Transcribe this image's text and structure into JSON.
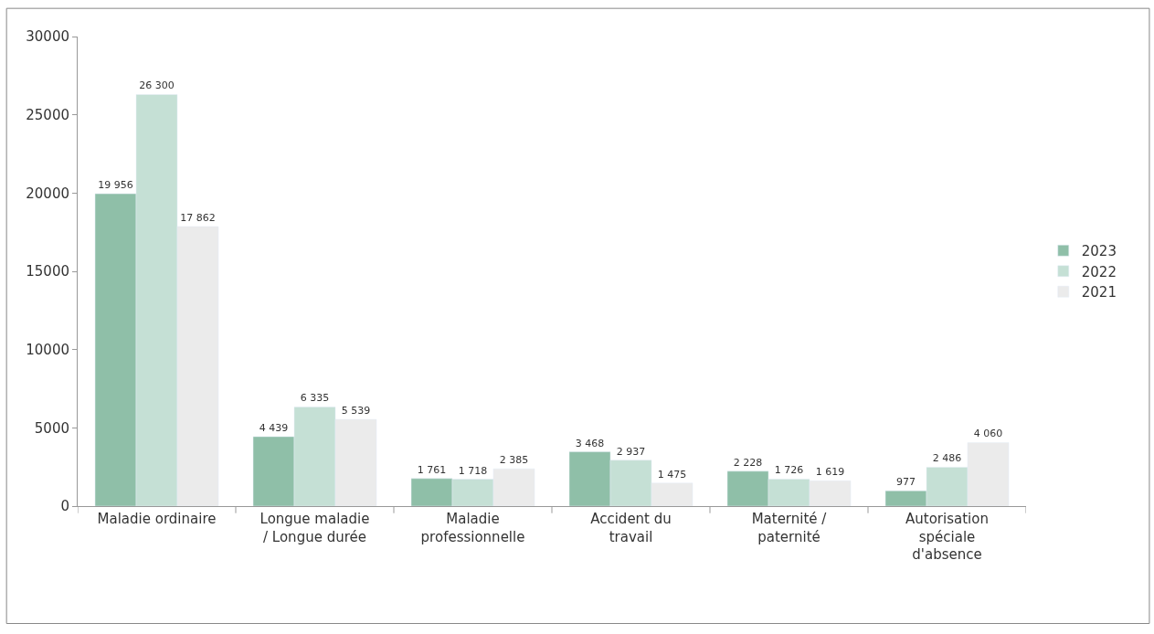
{
  "chart_data": {
    "type": "bar",
    "categories": [
      "Maladie ordinaire",
      "Longue maladie\n/ Longue durée",
      "Maladie\nprofessionnelle",
      "Accident du\ntravail",
      "Maternité /\npaternité",
      "Autorisation\nspéciale\nd'absence"
    ],
    "series": [
      {
        "name": "2023",
        "color": "#8fbfa8",
        "values": [
          19956,
          4439,
          1761,
          3468,
          2228,
          977
        ],
        "value_labels": [
          "19 956",
          "4 439",
          "1 761",
          "3 468",
          "2 228",
          "977"
        ]
      },
      {
        "name": "2022",
        "color": "#c5e0d5",
        "values": [
          26300,
          6335,
          1718,
          2937,
          1726,
          2486
        ],
        "value_labels": [
          "26 300",
          "6 335",
          "1 718",
          "2 937",
          "1 726",
          "2 486"
        ]
      },
      {
        "name": "2021",
        "color": "#ebebeb",
        "values": [
          17862,
          5539,
          2385,
          1475,
          1619,
          4060
        ],
        "value_labels": [
          "17 862",
          "5 539",
          "2 385",
          "1 475",
          "1 619",
          "4 060"
        ]
      }
    ],
    "ylim": [
      0,
      30000
    ],
    "yticks": [
      0,
      5000,
      10000,
      15000,
      20000,
      25000,
      30000
    ],
    "legend": "right"
  }
}
